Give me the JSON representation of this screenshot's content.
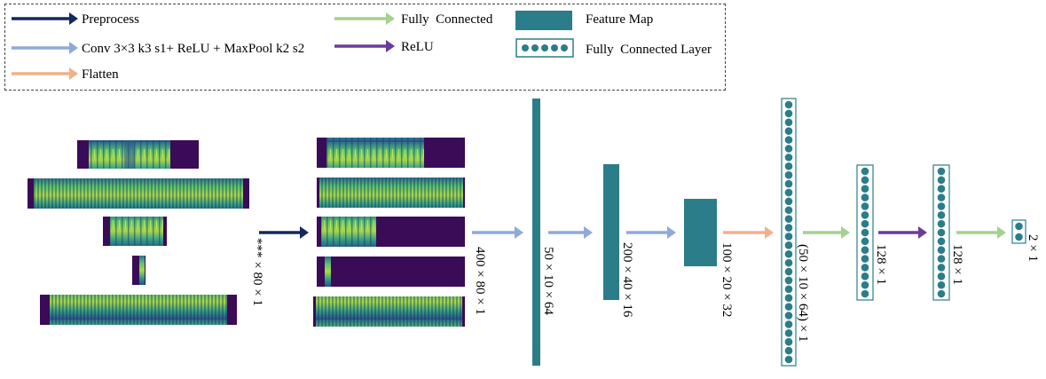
{
  "legend": {
    "preprocess": "Preprocess",
    "conv": "Conv 3×3 k3 s1+ ReLU + MaxPool k2 s2",
    "flatten": "Flatten",
    "fully_connected": "Fully  Connected",
    "relu": "ReLU",
    "feature_map": "Feature Map",
    "fc_layer": "Fully  Connected Layer"
  },
  "labels": {
    "input": "*** × 80 × 1",
    "padded": "400 × 80 × 1",
    "conv1": "50 × 10 × 64",
    "conv2": "200 × 40 × 16",
    "conv3": "100 × 20 × 32",
    "flat": "(50 × 10 × 64) × 1",
    "fc1": "128 × 1",
    "fc2": "128 × 1",
    "out": "2 × 1"
  },
  "colors": {
    "preprocess": "#13285e",
    "conv": "#8fa9da",
    "flatten": "#f2b08a",
    "fully_connected": "#a6d18e",
    "relu": "#6a3b9c",
    "feature_map": "#2b7d8a",
    "spectrogram_bg": "#3a0b57"
  }
}
